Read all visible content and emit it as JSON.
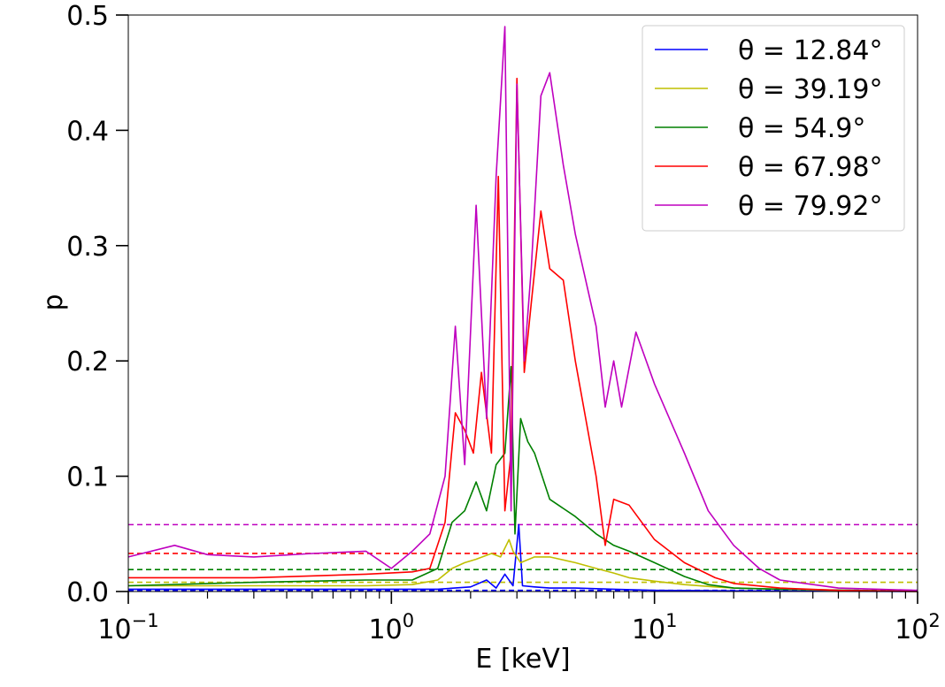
{
  "chart_data": {
    "type": "line",
    "xlabel": "E [keV]",
    "ylabel": "p",
    "xscale": "log",
    "xlim": [
      0.1,
      100
    ],
    "ylim": [
      0,
      0.5
    ],
    "x_ticks": [
      {
        "value": 0.1,
        "base": "10",
        "exp": "−1"
      },
      {
        "value": 1,
        "base": "10",
        "exp": "0"
      },
      {
        "value": 10,
        "base": "10",
        "exp": "1"
      },
      {
        "value": 100,
        "base": "10",
        "exp": "2"
      }
    ],
    "y_ticks": [
      {
        "value": 0.0,
        "label": "0.0"
      },
      {
        "value": 0.1,
        "label": "0.1"
      },
      {
        "value": 0.2,
        "label": "0.2"
      },
      {
        "value": 0.3,
        "label": "0.3"
      },
      {
        "value": 0.4,
        "label": "0.4"
      },
      {
        "value": 0.5,
        "label": "0.5"
      }
    ],
    "grid": false,
    "legend": {
      "position": "top-right"
    },
    "series": [
      {
        "name": "θ  = 12.84°",
        "color": "#0000ff",
        "mdp": 0.001,
        "points": [
          [
            0.1,
            0.002
          ],
          [
            0.2,
            0.002
          ],
          [
            0.5,
            0.002
          ],
          [
            1.0,
            0.002
          ],
          [
            1.5,
            0.002
          ],
          [
            2.0,
            0.004
          ],
          [
            2.3,
            0.01
          ],
          [
            2.5,
            0.003
          ],
          [
            2.7,
            0.015
          ],
          [
            2.9,
            0.005
          ],
          [
            3.05,
            0.058
          ],
          [
            3.15,
            0.005
          ],
          [
            3.5,
            0.004
          ],
          [
            4,
            0.003
          ],
          [
            5,
            0.003
          ],
          [
            7,
            0.002
          ],
          [
            10,
            0.001
          ],
          [
            20,
            0.0005
          ],
          [
            100,
            0.0
          ]
        ]
      },
      {
        "name": "θ  = 39.19°",
        "color": "#bfbf00",
        "mdp": 0.008,
        "points": [
          [
            0.1,
            0.005
          ],
          [
            0.3,
            0.005
          ],
          [
            0.8,
            0.005
          ],
          [
            1.2,
            0.006
          ],
          [
            1.5,
            0.01
          ],
          [
            1.7,
            0.02
          ],
          [
            1.9,
            0.025
          ],
          [
            2.1,
            0.028
          ],
          [
            2.4,
            0.033
          ],
          [
            2.6,
            0.03
          ],
          [
            2.8,
            0.045
          ],
          [
            2.9,
            0.035
          ],
          [
            3.1,
            0.025
          ],
          [
            3.5,
            0.03
          ],
          [
            4,
            0.03
          ],
          [
            5,
            0.025
          ],
          [
            6,
            0.02
          ],
          [
            7,
            0.016
          ],
          [
            8,
            0.012
          ],
          [
            10,
            0.009
          ],
          [
            13,
            0.006
          ],
          [
            17,
            0.004
          ],
          [
            20,
            0.003
          ],
          [
            30,
            0.002
          ],
          [
            50,
            0.001
          ],
          [
            100,
            0.0
          ]
        ]
      },
      {
        "name": "θ  = 54.9°",
        "color": "#008000",
        "mdp": 0.019,
        "points": [
          [
            0.1,
            0.005
          ],
          [
            0.3,
            0.008
          ],
          [
            0.8,
            0.01
          ],
          [
            1.2,
            0.01
          ],
          [
            1.5,
            0.02
          ],
          [
            1.7,
            0.06
          ],
          [
            1.9,
            0.07
          ],
          [
            2.1,
            0.095
          ],
          [
            2.3,
            0.07
          ],
          [
            2.5,
            0.11
          ],
          [
            2.7,
            0.12
          ],
          [
            2.85,
            0.195
          ],
          [
            2.95,
            0.05
          ],
          [
            3.1,
            0.15
          ],
          [
            3.3,
            0.13
          ],
          [
            3.5,
            0.12
          ],
          [
            4,
            0.08
          ],
          [
            5,
            0.065
          ],
          [
            6,
            0.05
          ],
          [
            7,
            0.04
          ],
          [
            8,
            0.035
          ],
          [
            10,
            0.025
          ],
          [
            13,
            0.013
          ],
          [
            16,
            0.006
          ],
          [
            20,
            0.003
          ],
          [
            30,
            0.002
          ],
          [
            60,
            0.001
          ],
          [
            100,
            0.0
          ]
        ]
      },
      {
        "name": "θ  = 67.98°",
        "color": "#ff0000",
        "mdp": 0.033,
        "points": [
          [
            0.1,
            0.012
          ],
          [
            0.3,
            0.012
          ],
          [
            0.8,
            0.015
          ],
          [
            1.2,
            0.017
          ],
          [
            1.4,
            0.02
          ],
          [
            1.6,
            0.06
          ],
          [
            1.75,
            0.155
          ],
          [
            1.9,
            0.14
          ],
          [
            2.05,
            0.12
          ],
          [
            2.2,
            0.19
          ],
          [
            2.4,
            0.12
          ],
          [
            2.55,
            0.36
          ],
          [
            2.7,
            0.07
          ],
          [
            2.85,
            0.12
          ],
          [
            3.0,
            0.445
          ],
          [
            3.2,
            0.19
          ],
          [
            3.4,
            0.25
          ],
          [
            3.7,
            0.33
          ],
          [
            4.0,
            0.28
          ],
          [
            4.5,
            0.27
          ],
          [
            5,
            0.2
          ],
          [
            6,
            0.1
          ],
          [
            6.5,
            0.04
          ],
          [
            7,
            0.08
          ],
          [
            8,
            0.075
          ],
          [
            10,
            0.045
          ],
          [
            13,
            0.025
          ],
          [
            17,
            0.012
          ],
          [
            20,
            0.007
          ],
          [
            30,
            0.003
          ],
          [
            50,
            0.001
          ],
          [
            100,
            0.0
          ]
        ]
      },
      {
        "name": "θ  = 79.92°",
        "color": "#bf00bf",
        "mdp": 0.058,
        "points": [
          [
            0.1,
            0.03
          ],
          [
            0.15,
            0.04
          ],
          [
            0.2,
            0.032
          ],
          [
            0.3,
            0.03
          ],
          [
            0.5,
            0.033
          ],
          [
            0.8,
            0.035
          ],
          [
            1.0,
            0.02
          ],
          [
            1.2,
            0.035
          ],
          [
            1.4,
            0.05
          ],
          [
            1.6,
            0.1
          ],
          [
            1.75,
            0.23
          ],
          [
            1.9,
            0.11
          ],
          [
            2.1,
            0.335
          ],
          [
            2.3,
            0.15
          ],
          [
            2.5,
            0.36
          ],
          [
            2.7,
            0.49
          ],
          [
            2.85,
            0.07
          ],
          [
            3.0,
            0.44
          ],
          [
            3.2,
            0.2
          ],
          [
            3.4,
            0.28
          ],
          [
            3.7,
            0.43
          ],
          [
            4.0,
            0.45
          ],
          [
            4.5,
            0.37
          ],
          [
            5,
            0.31
          ],
          [
            6,
            0.23
          ],
          [
            6.5,
            0.16
          ],
          [
            7,
            0.2
          ],
          [
            7.5,
            0.16
          ],
          [
            8.5,
            0.225
          ],
          [
            10,
            0.18
          ],
          [
            13,
            0.12
          ],
          [
            16,
            0.07
          ],
          [
            20,
            0.04
          ],
          [
            25,
            0.02
          ],
          [
            30,
            0.01
          ],
          [
            50,
            0.003
          ],
          [
            100,
            0.001
          ]
        ]
      }
    ]
  }
}
